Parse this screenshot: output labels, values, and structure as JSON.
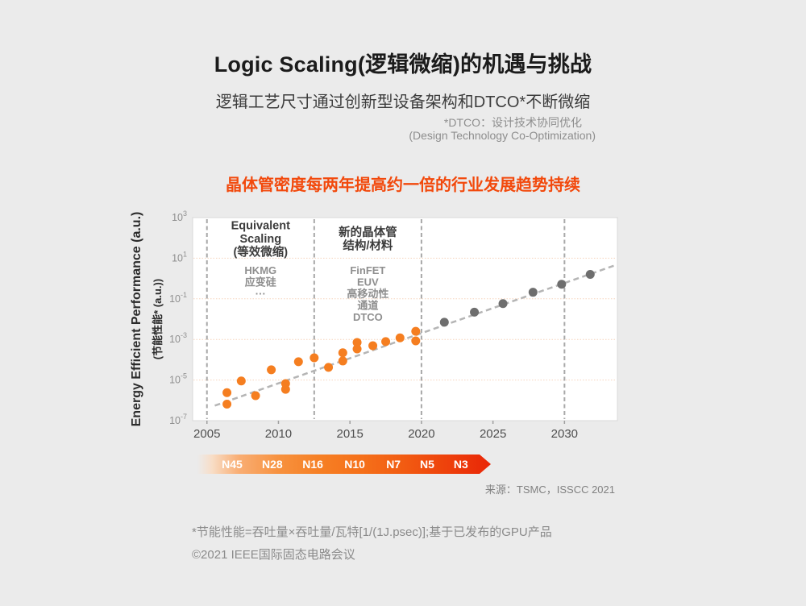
{
  "page": {
    "background": "#ebebeb"
  },
  "header": {
    "title": "Logic Scaling(逻辑微缩)的机遇与挑战",
    "subtitle": "逻辑工艺尺寸通过创新型设备架构和DTCO*不断微缩",
    "note_line1": "*DTCO：设计技术协同优化",
    "note_line2": "(Design Technology Co-Optimization)",
    "highlight": "晶体管密度每两年提高约一倍的行业发展趋势持续",
    "highlight_color": "#f2490c"
  },
  "chart_data": {
    "type": "scatter",
    "title": "",
    "ylabel": "Energy Efficient Performance (a.u.)",
    "ylabel_cn": "(节能性能* (a.u.))",
    "xlabel": "",
    "x_range": [
      2004,
      2033.7
    ],
    "x_ticks": [
      2005,
      2010,
      2015,
      2020,
      2025,
      2030
    ],
    "y_scale": "log",
    "y_log_range": [
      -7,
      3
    ],
    "y_tick_exponents": [
      3,
      1,
      -1,
      -3,
      -5,
      -7
    ],
    "gridline_exponents": [
      1,
      -1,
      -3,
      -5
    ],
    "grid": "horizontal-only",
    "legend": "none",
    "vline_years": [
      2005,
      2012.5,
      2020,
      2030
    ],
    "series": [
      {
        "name": "published-gpu",
        "color": "#f57e20",
        "points": [
          [
            2006.4,
            6.5e-07
          ],
          [
            2006.4,
            2.4e-06
          ],
          [
            2007.4,
            9e-06
          ],
          [
            2008.4,
            1.7e-06
          ],
          [
            2009.5,
            3.2e-05
          ],
          [
            2010.5,
            3.5e-06
          ],
          [
            2010.5,
            6.7e-06
          ],
          [
            2011.4,
            8e-05
          ],
          [
            2012.5,
            0.000125
          ],
          [
            2013.5,
            4.2e-05
          ],
          [
            2014.5,
            8.7e-05
          ],
          [
            2014.5,
            0.00022
          ],
          [
            2015.5,
            0.00034
          ],
          [
            2015.5,
            0.00071
          ],
          [
            2016.6,
            0.00049
          ],
          [
            2017.5,
            0.00078
          ],
          [
            2018.5,
            0.0012
          ],
          [
            2019.6,
            0.00085
          ],
          [
            2019.6,
            0.0025
          ]
        ]
      },
      {
        "name": "projection",
        "color": "#6e6e6e",
        "points": [
          [
            2021.6,
            0.007
          ],
          [
            2023.7,
            0.022
          ],
          [
            2025.7,
            0.058
          ],
          [
            2027.8,
            0.21
          ],
          [
            2029.8,
            0.52
          ],
          [
            2031.8,
            1.6
          ]
        ]
      }
    ],
    "trend": {
      "x1": 2005.55,
      "v1": 5.5e-07,
      "x2": 2033.55,
      "v2": 4.5,
      "color": "#b5b5b5"
    },
    "annotations": [
      {
        "center_year": 2008.75,
        "title_lines": [
          "Equivalent",
          "Scaling",
          "(等效微缩)"
        ],
        "detail_lines": [
          "HKMG",
          "应变硅",
          "···"
        ]
      },
      {
        "center_year": 2016.25,
        "title_lines": [
          "新的晶体管",
          "结构/材料"
        ],
        "detail_lines": [
          "FinFET",
          "EUV",
          "高移动性",
          "通道",
          "DTCO"
        ]
      }
    ]
  },
  "node_bar": {
    "labels": [
      "N45",
      "N28",
      "N16",
      "N10",
      "N7",
      "N5",
      "N3"
    ],
    "positions_pct": [
      11.8,
      25.5,
      39.3,
      53.6,
      66.8,
      78.3,
      89.8
    ]
  },
  "source": "来源：TSMC，ISSCC 2021",
  "footnotes": {
    "line1": "*节能性能=吞吐量×吞吐量/瓦特[1/(1J.psec)];基于已发布的GPU产品",
    "line2": "©2021 IEEE国际固态电路会议"
  }
}
